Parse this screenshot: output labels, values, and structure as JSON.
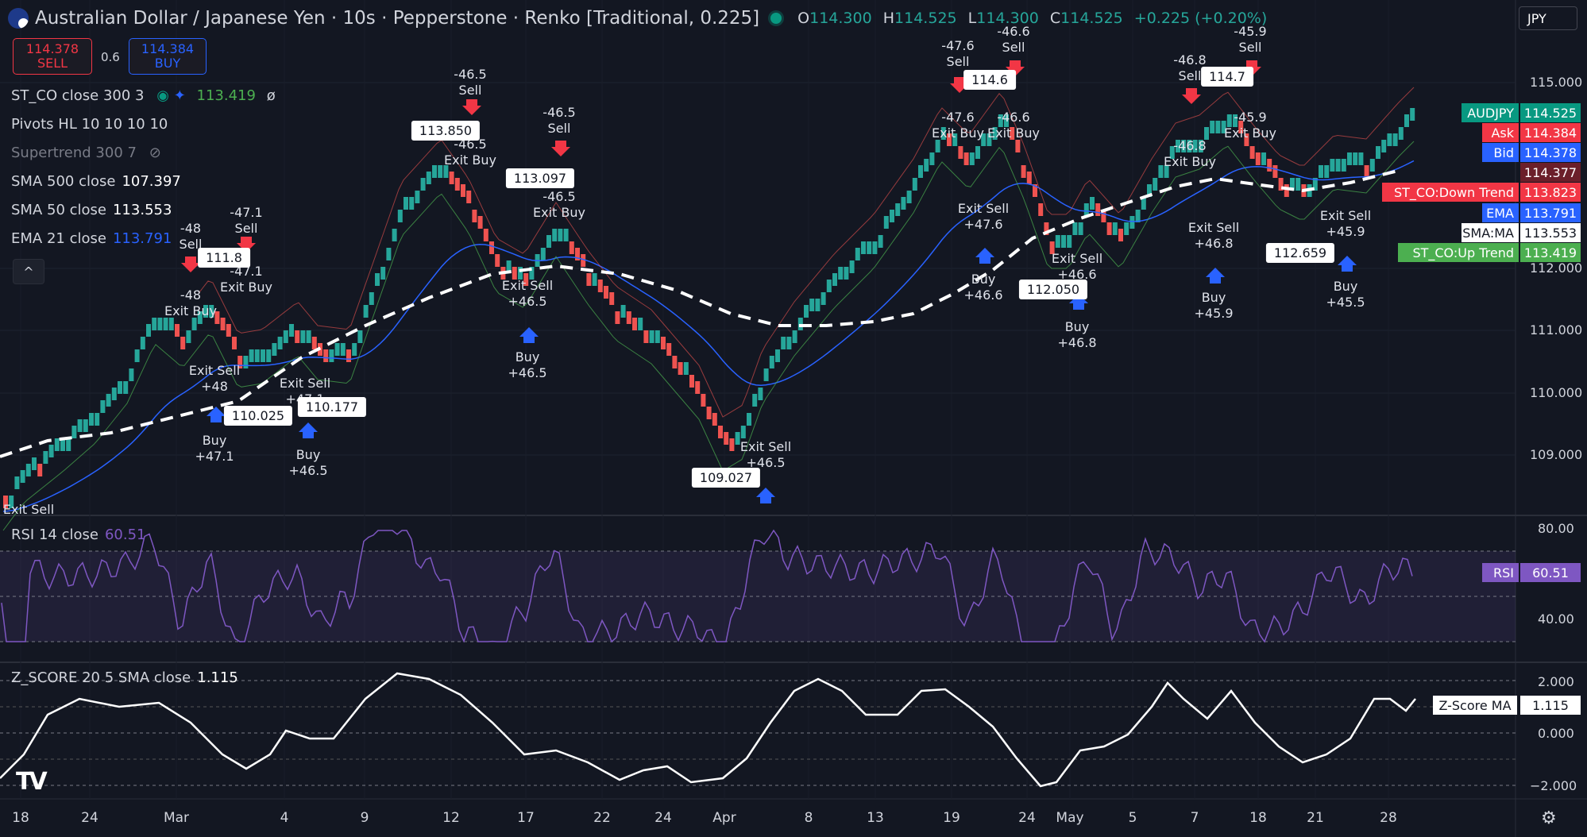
{
  "header": {
    "title": "Australian Dollar / Japanese Yen · 10s · Pepperstone · Renko [Traditional, 0.225]",
    "o_label": "O",
    "o": "114.300",
    "h_label": "H",
    "h": "114.525",
    "l_label": "L",
    "l": "114.300",
    "c_label": "C",
    "c": "114.525",
    "change": "+0.225 (+0.20%)",
    "currency": "JPY"
  },
  "trade": {
    "sell_price": "114.378",
    "sell_label": "SELL",
    "spread": "0.6",
    "buy_price": "114.384",
    "buy_label": "BUY"
  },
  "legend": {
    "st_co": "ST_CO close 300 3",
    "st_co_val": "113.419",
    "st_co_extra": "ø",
    "pivots": "Pivots HL 10 10 10 10",
    "supertrend": "Supertrend 300 7",
    "sma500": "SMA 500 close",
    "sma500_val": "107.397",
    "sma50": "SMA 50 close",
    "sma50_val": "113.553",
    "ema21": "EMA 21 close",
    "ema21_val": "113.791",
    "collapse": "^",
    "rsi": "RSI 14 close",
    "rsi_val": "60.51",
    "zscore": "Z_SCORE 20 5 SMA close",
    "zscore_val": "1.115"
  },
  "price_labels": [
    {
      "label": "AUDJPY",
      "value": "114.525",
      "color": "#089981"
    },
    {
      "label": "Ask",
      "value": "114.384",
      "color": "#f23645"
    },
    {
      "label": "Bid",
      "value": "114.378",
      "color": "#2962ff"
    },
    {
      "label": "",
      "value": "114.377",
      "color": "#6b1f2a"
    },
    {
      "label": "ST_CO:Down Trend",
      "value": "113.823",
      "color": "#f23645"
    },
    {
      "label": "EMA",
      "value": "113.791",
      "color": "#2962ff"
    },
    {
      "label": "SMA:MA",
      "value": "113.553",
      "color": "#ffffff"
    },
    {
      "label": "ST_CO:Up Trend",
      "value": "113.419",
      "color": "#4caf50"
    }
  ],
  "y_ticks": [
    "115.000",
    "112.000",
    "111.000",
    "110.000",
    "109.000"
  ],
  "rsi_ticks": [
    "80.00",
    "40.00"
  ],
  "rsi_label": {
    "label": "RSI",
    "value": "60.51"
  },
  "z_ticks": [
    "2.000",
    "0.000",
    "−2.000"
  ],
  "z_label": {
    "label": "Z-Score MA",
    "value": "1.115"
  },
  "x_labels": [
    "18",
    "24",
    "Mar",
    "4",
    "9",
    "12",
    "17",
    "22",
    "24",
    "Apr",
    "8",
    "13",
    "19",
    "24",
    "May",
    "5",
    "7",
    "18",
    "21",
    "28"
  ],
  "pivots": [
    "111.8",
    "113.850",
    "113.097",
    "114.6",
    "114.7",
    "110.025",
    "110.177",
    "109.027",
    "112.050",
    "112.659"
  ],
  "annotations": [
    {
      "t": "-48\nSell"
    },
    {
      "t": "-47.1\nSell"
    },
    {
      "t": "-48\nExit Buy"
    },
    {
      "t": "-47.1\nExit Buy"
    },
    {
      "t": "-46.5\nSell"
    },
    {
      "t": "-46.5\nExit Buy"
    },
    {
      "t": "-46.5\nSell"
    },
    {
      "t": "-46.5\nExit Buy"
    },
    {
      "t": "-47.6\nSell"
    },
    {
      "t": "-46.6\nSell"
    },
    {
      "t": "-47.6\nExit Buy"
    },
    {
      "t": "-46.6\nExit Buy"
    },
    {
      "t": "-46.8\nSell"
    },
    {
      "t": "-45.9\nSell"
    },
    {
      "t": "-46.8\nExit Buy"
    },
    {
      "t": "-45.9\nExit Buy"
    },
    {
      "t": "Exit Sell\n+48"
    },
    {
      "t": "Exit Sell\n+47.1"
    },
    {
      "t": "Buy\n+47.1"
    },
    {
      "t": "Buy\n+46.5"
    },
    {
      "t": "Exit Sell\n+46.5"
    },
    {
      "t": "Buy\n+46.5"
    },
    {
      "t": "Exit Sell\n+46.5"
    },
    {
      "t": "Exit Sell\n+47.6"
    },
    {
      "t": "Buy\n+46.6"
    },
    {
      "t": "Exit Sell\n+46.6"
    },
    {
      "t": "Buy\n+46.8"
    },
    {
      "t": "Exit Sell\n+46.8"
    },
    {
      "t": "Buy\n+45.9"
    },
    {
      "t": "Exit Sell\n+45.9"
    },
    {
      "t": "Buy\n+45.5"
    },
    {
      "t": "Exit Sell"
    }
  ],
  "colors": {
    "up": "#26a69a",
    "down": "#ef5350",
    "ema": "#2962ff",
    "rsi": "#7e57c2",
    "bg": "#131722"
  }
}
